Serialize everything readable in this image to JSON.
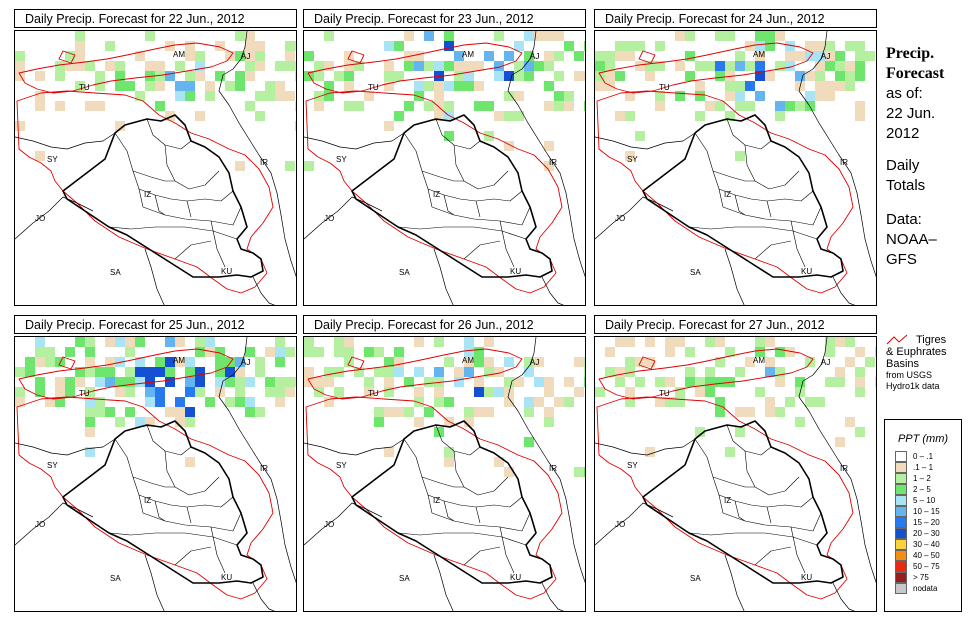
{
  "panels": [
    {
      "title": "Daily Precip. Forecast for  22 Jun., 2012",
      "intensity": 0.75
    },
    {
      "title": "Daily Precip. Forecast for  23 Jun., 2012",
      "intensity": 1.0
    },
    {
      "title": "Daily Precip. Forecast for  24 Jun., 2012",
      "intensity": 0.9
    },
    {
      "title": "Daily Precip. Forecast for  25 Jun., 2012",
      "intensity": 1.1
    },
    {
      "title": "Daily Precip. Forecast for  26 Jun., 2012",
      "intensity": 0.85
    },
    {
      "title": "Daily Precip. Forecast for  27 Jun., 2012",
      "intensity": 0.7
    }
  ],
  "map_labels": [
    "AM",
    "AJ",
    "TU",
    "SY",
    "IR",
    "IZ",
    "JO",
    "SA",
    "KU"
  ],
  "side": {
    "title_line1": "Precip.",
    "title_line2": "Forecast",
    "asof_line1": "as of:",
    "asof_line2": "22 Jun.",
    "asof_line3": "2012",
    "daily_line1": "Daily",
    "daily_line2": "Totals",
    "data_line1": "Data:",
    "data_line2": "NOAA–",
    "data_line3": "GFS"
  },
  "basin_legend": {
    "line1": "Tigres",
    "line2": "& Euphrates",
    "line3": "Basins",
    "line4": "from USGS",
    "line5": "Hydro1k data",
    "color": "#e00000"
  },
  "ppt_legend": {
    "title": "PPT (mm)",
    "classes": [
      {
        "label": "0 – .1",
        "color": "#ffffff"
      },
      {
        "label": ".1 – 1",
        "color": "#f0dcbc"
      },
      {
        "label": "1 – 2",
        "color": "#b4f0a0"
      },
      {
        "label": "2 – 5",
        "color": "#6ee66e"
      },
      {
        "label": "5 – 10",
        "color": "#a8e4f4"
      },
      {
        "label": "10 – 15",
        "color": "#64b4f0"
      },
      {
        "label": "15 – 20",
        "color": "#2878f0"
      },
      {
        "label": "20 – 30",
        "color": "#1450d2"
      },
      {
        "label": "30 – 40",
        "color": "#fad23c"
      },
      {
        "label": "40 – 50",
        "color": "#f58c14"
      },
      {
        "label": "50 – 75",
        "color": "#e62814"
      },
      {
        "label": "> 75",
        "color": "#961e1e"
      },
      {
        "label": "nodata",
        "color": "#c8c8c8"
      }
    ]
  }
}
